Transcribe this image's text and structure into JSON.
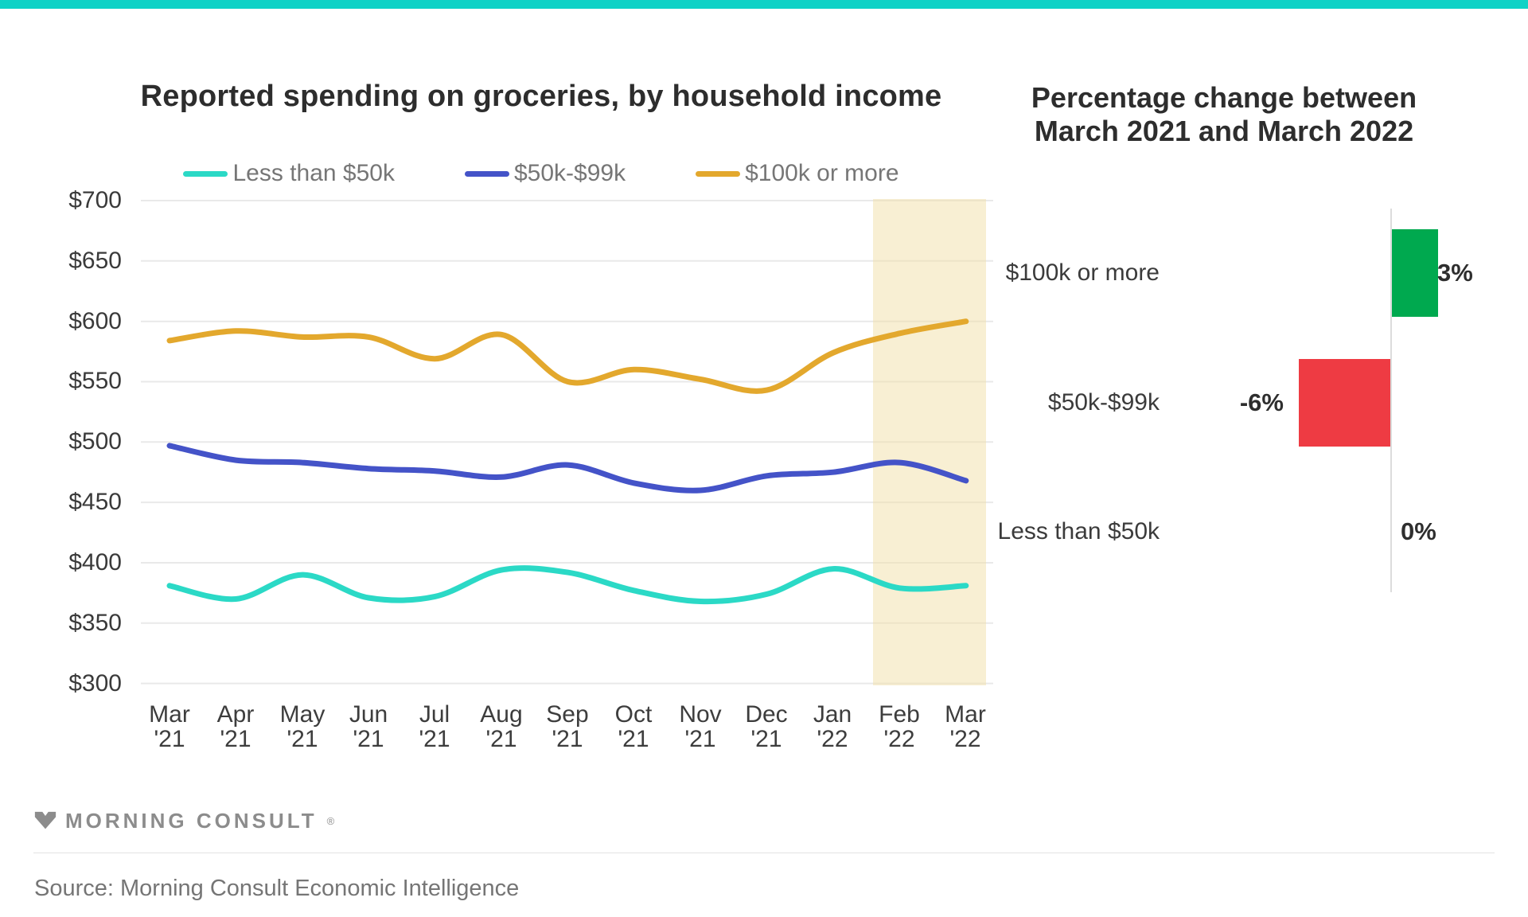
{
  "page": {
    "top_bar_color": "#0FD2C6"
  },
  "chart_data": [
    {
      "type": "line",
      "title": "Reported spending on groceries, by household income",
      "x_labels": [
        {
          "m": "Mar",
          "y": "'21"
        },
        {
          "m": "Apr",
          "y": "'21"
        },
        {
          "m": "May",
          "y": "'21"
        },
        {
          "m": "Jun",
          "y": "'21"
        },
        {
          "m": "Jul",
          "y": "'21"
        },
        {
          "m": "Aug",
          "y": "'21"
        },
        {
          "m": "Sep",
          "y": "'21"
        },
        {
          "m": "Oct",
          "y": "'21"
        },
        {
          "m": "Nov",
          "y": "'21"
        },
        {
          "m": "Dec",
          "y": "'21"
        },
        {
          "m": "Jan",
          "y": "'22"
        },
        {
          "m": "Feb",
          "y": "'22"
        },
        {
          "m": "Mar",
          "y": "'22"
        }
      ],
      "series": [
        {
          "name": "Less than $50k",
          "color": "#2BD9C6",
          "values": [
            381,
            370,
            390,
            371,
            372,
            394,
            392,
            377,
            368,
            374,
            395,
            379,
            381
          ]
        },
        {
          "name": "$50k-$99k",
          "color": "#4453C8",
          "values": [
            497,
            485,
            483,
            478,
            476,
            471,
            481,
            466,
            460,
            472,
            475,
            483,
            468
          ]
        },
        {
          "name": "$100k or more",
          "color": "#E3A82D",
          "values": [
            584,
            592,
            587,
            587,
            569,
            589,
            550,
            560,
            552,
            543,
            574,
            590,
            600
          ]
        }
      ],
      "ylim": [
        300,
        700
      ],
      "y_tick_step": 50,
      "y_tick_labels": [
        "$700",
        "$650",
        "$600",
        "$550",
        "$500",
        "$450",
        "$400",
        "$350",
        "$300"
      ],
      "grid": "horizontal",
      "legend_position": "top-center",
      "highlight_region": {
        "from": "Feb '22",
        "to": "Mar '22",
        "color": "rgba(242,223,168,0.5)"
      }
    },
    {
      "type": "bar",
      "orientation": "horizontal",
      "title_line1": "Percentage change between",
      "title_line2": "March 2021 and March 2022",
      "categories": [
        "$100k or more",
        "$50k-$99k",
        "Less than $50k"
      ],
      "values": [
        3,
        -6,
        0
      ],
      "value_labels": [
        "3%",
        "-6%",
        "0%"
      ],
      "bar_colors": [
        "#00A94F",
        "#EE3B43",
        "#9e9e9e"
      ],
      "xlim": [
        -6,
        3
      ],
      "positive_color": "#00A94F",
      "negative_color": "#EE3B43"
    }
  ],
  "footer": {
    "logo_text": "MORNING CONSULT",
    "registered_mark": "®",
    "source": "Source: Morning Consult Economic Intelligence"
  }
}
